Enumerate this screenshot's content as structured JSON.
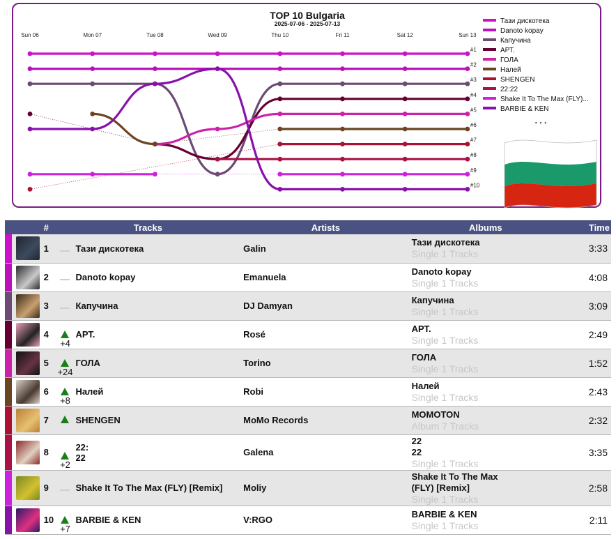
{
  "chart_data": {
    "type": "line",
    "title": "TOP 10 Bulgaria",
    "subtitle": "2025-07-06 - 2025-07-13",
    "x": [
      "Sun 06",
      "Mon 07",
      "Tue 08",
      "Wed 09",
      "Thu 10",
      "Fri 11",
      "Sat 12",
      "Sun 13"
    ],
    "y_ticks": [
      "#1",
      "#2",
      "#3",
      "#4",
      "#5",
      "#6",
      "#7",
      "#8",
      "#9",
      "#10"
    ],
    "ylim": [
      1,
      10
    ],
    "legend_position": "right",
    "legend_more": ". . .",
    "series": [
      {
        "name": "Тази дискотека",
        "color": "#cc11cc",
        "values": [
          1,
          1,
          1,
          1,
          1,
          1,
          1,
          1
        ]
      },
      {
        "name": "Danoto kopay",
        "color": "#bb11bb",
        "values": [
          2,
          2,
          2,
          2,
          2,
          2,
          2,
          2
        ]
      },
      {
        "name": "Капучина",
        "color": "#6b4a73",
        "values": [
          3,
          3,
          3,
          9,
          3,
          3,
          3,
          3
        ]
      },
      {
        "name": "АРТ.",
        "color": "#660033",
        "values": [
          5,
          null,
          7,
          8,
          4,
          4,
          4,
          4
        ]
      },
      {
        "name": "ГОЛА",
        "color": "#cc22aa",
        "values": [
          null,
          null,
          7,
          6,
          5,
          5,
          5,
          5
        ]
      },
      {
        "name": "Налей",
        "color": "#6b4422",
        "values": [
          null,
          5,
          7,
          null,
          6,
          6,
          6,
          6
        ]
      },
      {
        "name": "SHENGEN",
        "color": "#aa1133",
        "values": [
          10,
          null,
          null,
          null,
          7,
          7,
          7,
          7
        ]
      },
      {
        "name": "22:22",
        "color": "#aa1144",
        "values": [
          null,
          null,
          null,
          8,
          8,
          8,
          8,
          8
        ]
      },
      {
        "name": "Shake It To The Max (FLY)...",
        "color": "#cc22dd",
        "values": [
          9,
          9,
          9,
          null,
          9,
          9,
          9,
          9
        ]
      },
      {
        "name": "BARBIE & KEN",
        "color": "#8811aa",
        "values": [
          6,
          6,
          3,
          2,
          10,
          10,
          10,
          10
        ]
      }
    ]
  },
  "table": {
    "headers": {
      "rank": "#",
      "tracks": "Tracks",
      "artists": "Artists",
      "albums": "Albums",
      "time": "Time"
    },
    "rows": [
      {
        "rank": "1",
        "move": "",
        "up": false,
        "track": "Тази дискотека",
        "artist": "Galin",
        "album": "Тази дискотека",
        "album_sub": "Single 1 Tracks",
        "time": "3:33",
        "color": "#cc11cc",
        "cover": [
          "#1f2530",
          "#3d4a5c"
        ]
      },
      {
        "rank": "2",
        "move": "",
        "up": false,
        "track": "Danoto kopay",
        "artist": "Emanuela",
        "album": "Danoto kopay",
        "album_sub": "Single 1 Tracks",
        "time": "4:08",
        "color": "#bb11bb",
        "cover": [
          "#2c2c2c",
          "#c9c9c9"
        ]
      },
      {
        "rank": "3",
        "move": "",
        "up": false,
        "track": "Капучина",
        "artist": "DJ Damyan",
        "album": "Капучина",
        "album_sub": "Single 1 Tracks",
        "time": "3:09",
        "color": "#6b4a73",
        "cover": [
          "#3a2a18",
          "#c9a070"
        ]
      },
      {
        "rank": "4",
        "move": "+4",
        "up": true,
        "track": "АРТ.",
        "artist": "Rosé",
        "album": "АРТ.",
        "album_sub": "Single 1 Tracks",
        "time": "2:49",
        "color": "#660033",
        "cover": [
          "#e8a0b8",
          "#222222"
        ]
      },
      {
        "rank": "5",
        "move": "+24",
        "up": true,
        "track": "ГОЛА",
        "artist": "Torino",
        "album": "ГОЛА",
        "album_sub": "Single 1 Tracks",
        "time": "1:52",
        "color": "#cc22aa",
        "cover": [
          "#111111",
          "#663344"
        ]
      },
      {
        "rank": "6",
        "move": "+8",
        "up": true,
        "track": "Налей",
        "artist": "Robi",
        "album": "Налей",
        "album_sub": "Single 1 Tracks",
        "time": "2:43",
        "color": "#6b4422",
        "cover": [
          "#d8d0c8",
          "#4a3a30"
        ]
      },
      {
        "rank": "7",
        "move": "",
        "up": true,
        "track": "SHENGEN",
        "artist": "MoMo Records",
        "album": "MOMOTON",
        "album_sub": "Album 7 Tracks",
        "time": "2:32",
        "color": "#aa1133",
        "cover": [
          "#b8803a",
          "#e8c070"
        ]
      },
      {
        "rank": "8",
        "move": "+2",
        "up": true,
        "track": "22:\n22",
        "artist": "Galena",
        "album": "22\n22",
        "album_sub": "Single 1 Tracks",
        "time": "3:35",
        "color": "#aa1144",
        "cover": [
          "#8a2a2a",
          "#e0d0c0"
        ]
      },
      {
        "rank": "9",
        "move": "",
        "up": false,
        "track": "Shake It To The Max (FLY) [Remix]",
        "artist": "Moliy",
        "album": "Shake It To The Max\n(FLY) [Remix]",
        "album_sub": "Single 1 Tracks",
        "time": "2:58",
        "color": "#cc22dd",
        "cover": [
          "#7a8a20",
          "#d4c030"
        ]
      },
      {
        "rank": "10",
        "move": "+7",
        "up": true,
        "track": "BARBIE & KEN",
        "artist": "V:RGO",
        "album": "BARBIE & KEN",
        "album_sub": "Single 1 Tracks",
        "time": "2:11",
        "color": "#8811aa",
        "cover": [
          "#2a1a6a",
          "#e03080"
        ]
      }
    ]
  },
  "flag": {
    "colors": [
      "#ffffff",
      "#1a9a6a",
      "#d62612"
    ]
  }
}
